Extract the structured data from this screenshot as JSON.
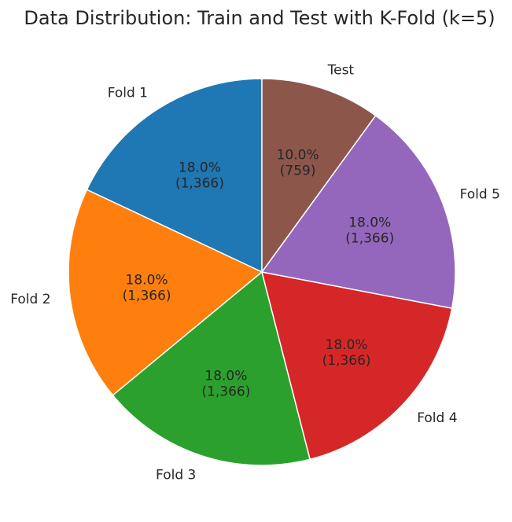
{
  "chart_data": {
    "type": "pie",
    "title": "Data Distribution: Train and Test with K-Fold (k=5)",
    "start_angle_deg": 90,
    "direction": "counterclockwise",
    "slices": [
      {
        "label": "Fold 1",
        "value": 1366,
        "pct": "18.0%",
        "count": "(1,366)",
        "color": "#1f77b4"
      },
      {
        "label": "Fold 2",
        "value": 1366,
        "pct": "18.0%",
        "count": "(1,366)",
        "color": "#ff7f0e"
      },
      {
        "label": "Fold 3",
        "value": 1366,
        "pct": "18.0%",
        "count": "(1,366)",
        "color": "#2ca02c"
      },
      {
        "label": "Fold 4",
        "value": 1366,
        "pct": "18.0%",
        "count": "(1,366)",
        "color": "#d62728"
      },
      {
        "label": "Fold 5",
        "value": 1366,
        "pct": "18.0%",
        "count": "(1,366)",
        "color": "#9467bd"
      },
      {
        "label": "Test",
        "value": 759,
        "pct": "10.0%",
        "count": "(759)",
        "color": "#8c564b"
      }
    ],
    "edge_color": "#ffffff"
  }
}
